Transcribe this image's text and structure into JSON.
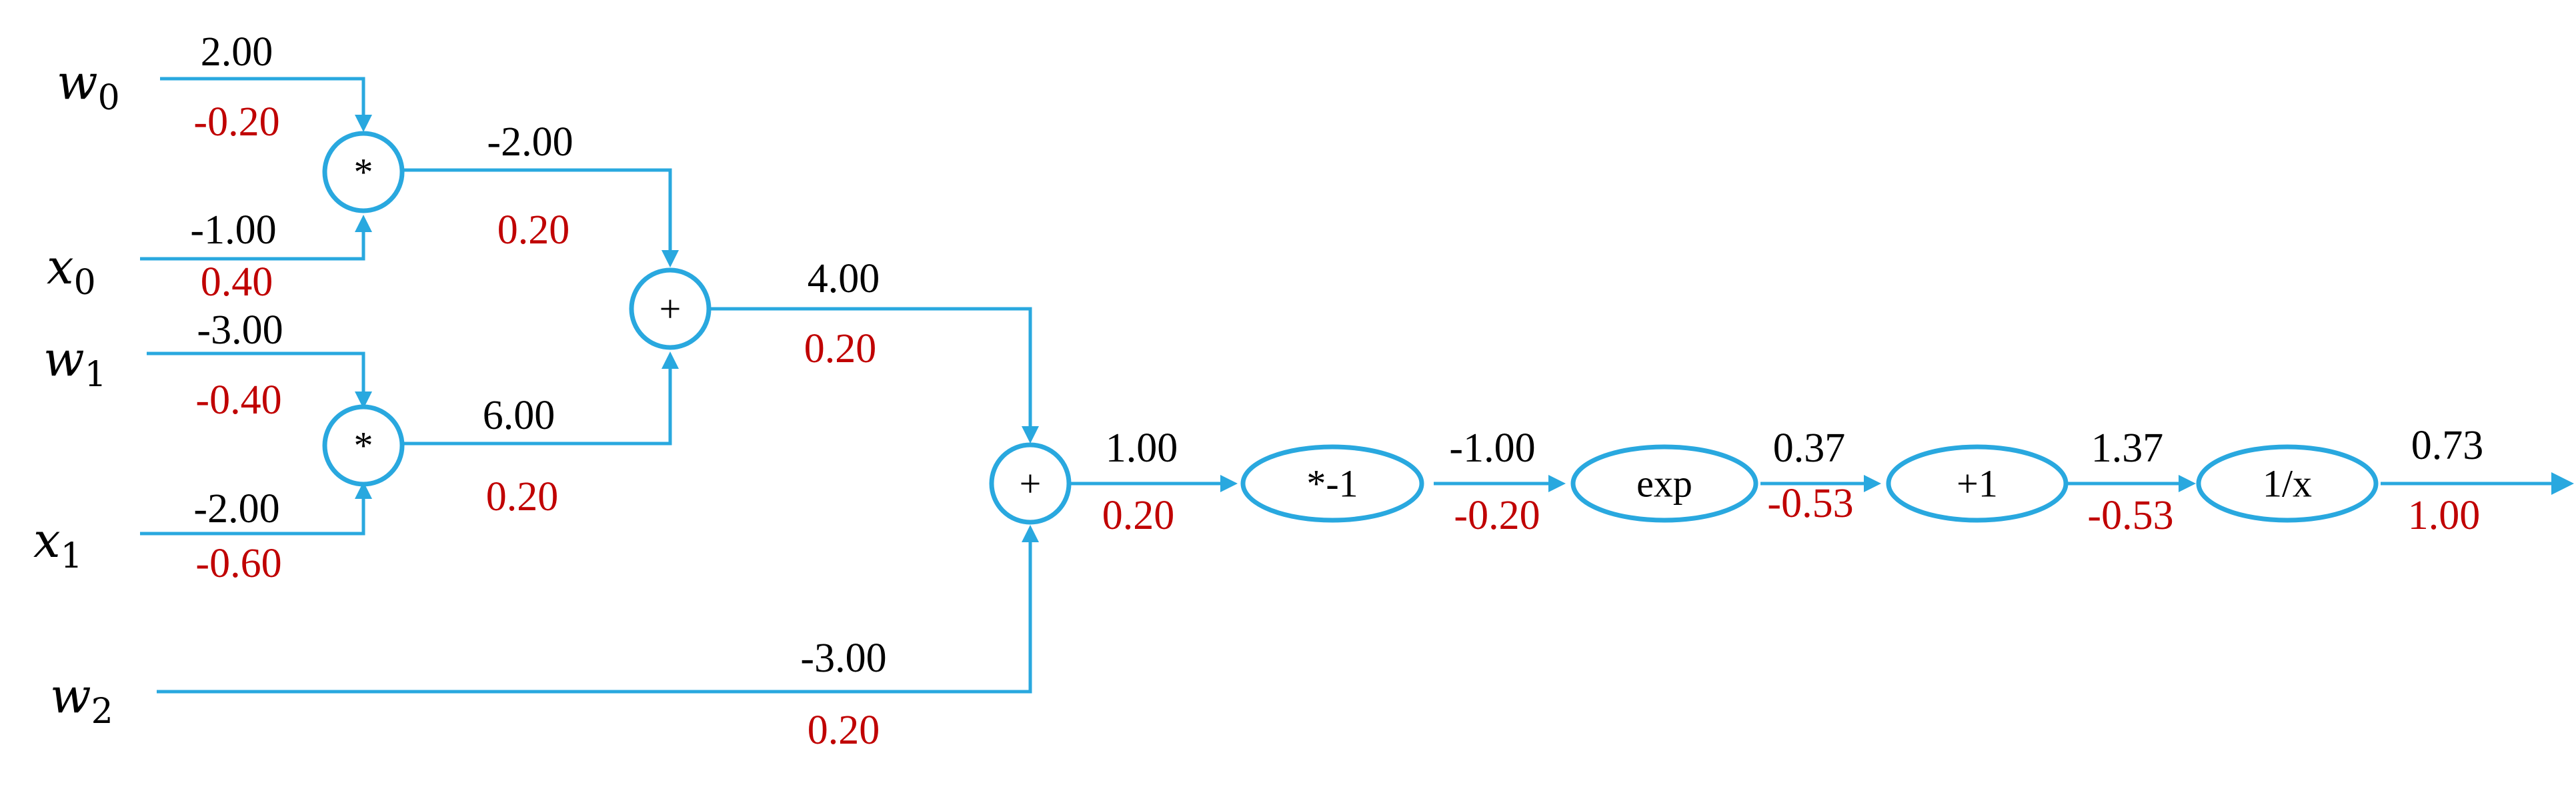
{
  "diagram": {
    "inputs": {
      "w0": {
        "base": "w",
        "sub": "0",
        "forward": "2.00",
        "grad": "-0.20"
      },
      "x0": {
        "base": "x",
        "sub": "0",
        "forward": "-1.00",
        "grad": "0.40"
      },
      "w1": {
        "base": "w",
        "sub": "1",
        "forward": "-3.00",
        "grad": "-0.40"
      },
      "x1": {
        "base": "x",
        "sub": "1",
        "forward": "-2.00",
        "grad": "-0.60"
      },
      "w2": {
        "base": "w",
        "sub": "2",
        "forward": "-3.00",
        "grad": "0.20"
      }
    },
    "nodes": {
      "mul0": {
        "op": "*"
      },
      "mul1": {
        "op": "*"
      },
      "add0": {
        "op": "+"
      },
      "add1": {
        "op": "+"
      },
      "neg": {
        "op": "*-1"
      },
      "exp": {
        "op": "exp"
      },
      "inc": {
        "op": "+1"
      },
      "inv": {
        "op": "1/x"
      }
    },
    "edges": {
      "mul0_out": {
        "forward": "-2.00",
        "grad": "0.20"
      },
      "mul1_out": {
        "forward": "6.00",
        "grad": "0.20"
      },
      "add0_out": {
        "forward": "4.00",
        "grad": "0.20"
      },
      "add1_out": {
        "forward": "1.00",
        "grad": "0.20"
      },
      "neg_out": {
        "forward": "-1.00",
        "grad": "-0.20"
      },
      "exp_out": {
        "forward": "0.37",
        "grad": "-0.53"
      },
      "inc_out": {
        "forward": "1.37",
        "grad": "-0.53"
      },
      "inv_out": {
        "forward": "0.73",
        "grad": "1.00"
      }
    },
    "colors": {
      "wire": "#29a8df",
      "forward": "#000000",
      "gradient": "#c00000"
    }
  }
}
